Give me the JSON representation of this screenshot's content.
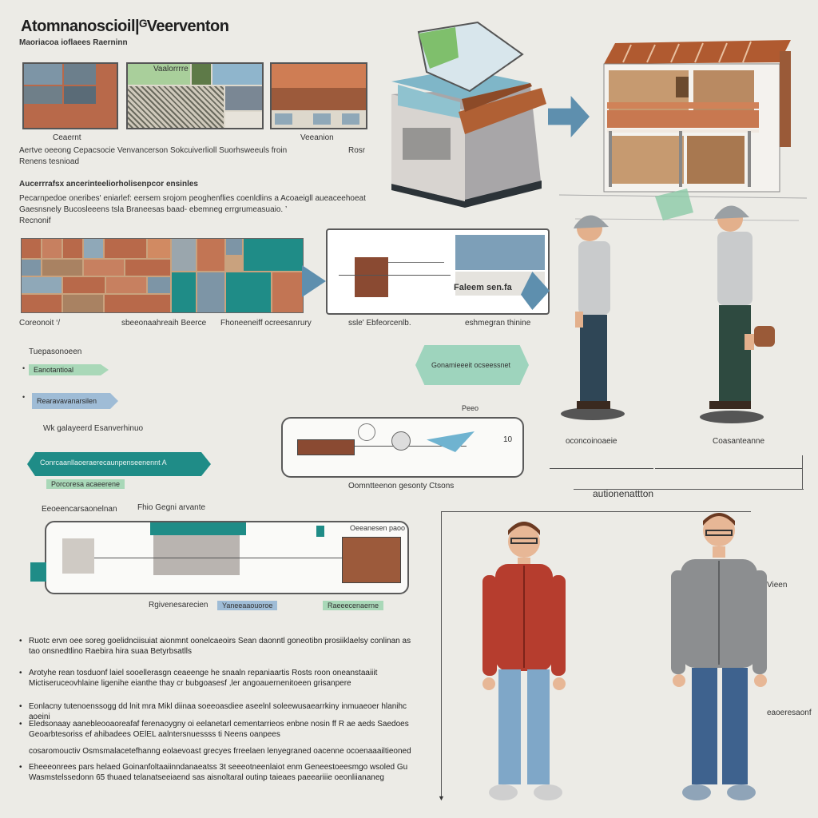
{
  "header": {
    "title": "Atomnanoscioil|ᴳVeerventon",
    "subtitle": "Maoriacoa ioflaees Raerninn"
  },
  "top_panels": {
    "panel1_label": "Ceaernt",
    "panel2_label": "Vaalorrrre",
    "panel3_label": "Veeanion",
    "caption_line1": "Aertve oeeong Cepacsocie Venvancerson Sokcuiverlioll Suorhsweeuls froin",
    "caption_line2": "Renens tesnioad",
    "caption_x": "Rosr"
  },
  "section2": {
    "heading": "Aucerrrafsx ancerinteeliorholisenpcor ensinles",
    "line1": "Pecarnpedoe oneribes' eniarlef: eersem srojom peoghenflies coenldlins a Acoaeigll aueaceehoeat",
    "line2": "Gaesnsnely Bucosleeens tsla Braneesas baad- ebemneg errgrumeasuaio. ’",
    "line3": "Recnonif"
  },
  "mid_labels": {
    "grid_left": "Coreonoit ‘/",
    "grid_mid": "sbeeonaahreaih Beerce",
    "grid_right": "Fhoneeneiff ocreesanrury",
    "box_left": "ssle' Ebfeorcenlb.",
    "box_right": "eshmegran thinine",
    "box_inner": "Faleem sen.fa"
  },
  "left_tags": {
    "heading": "Tuepasonoeen",
    "tag1": "Eanotantioal weonee",
    "tag2": "Rearavavanarsilen",
    "wide_label": "Wk galayeerd Esanverhinuo",
    "banner": "Conrcaanllaoeraerecaunpenseenennt  A",
    "subbanner": "Porcoresa acaeerene"
  },
  "flow": {
    "top_tag": "Gonamieeeit  ocseessnet",
    "top_small": "Peeo",
    "number": "10",
    "caption": "Oomntteenon gesonty Ctsons"
  },
  "workers": {
    "label_left": "oconcoinoaeie",
    "label_right": "Coasanteanne"
  },
  "automation_label": "autionenattton",
  "bottom_flow": {
    "label_a": "Eeoeencarsaonelnan",
    "label_b": "Fhio Gegni arvante",
    "label_c": "Oeeanesen paoo",
    "label_d": "Rgivenesarecien",
    "tag_1": "Yaneeaaouoroe",
    "tag_2": "Raeeecenaerne"
  },
  "bullets": [
    "Ruotc ervn oee soreg goelidnciisuiat aionmnt oonelcaeoirs Sean daonntl goneotibn prosiiklaelsy conlinan as tao onsnedtlino Raebira  hira suaa Betyrbsatlls",
    "Arotyhe rean tosduonf laiel sooellerasgn ceaeenge he snaaln repaniaartis Rosts roon oneanstaaiiit Mictiseruceovhlaine ligenihe eianthe thay cr bubgoasesf ,ler angoauernenitoeen grisanpere",
    "Eonlacny tutenoenssogg dd lnit mra Mikl diinaa soeeoasdiee aseelnl soleewusaearrkiny inmuaeoer hlanihc aoeini",
    "Eledsonaay aanebleooaoreafaf ferenaoygny oi eelanetarl cementarrieos enbne nosin ff R ae aeds Saedoes Geoarbtesoriss ef ahibadees OElEL aalntersnuessss ti Neens oanpees",
    "cosaromouctiv Osmsmalacetefhanng eolaevoast grecyes frreelaen lenyegraned oacenne ocoenaaailtieoned",
    "Eheeeonrees pars helaed Goinanfoltaaiinndanaeatss 3t seeeotneenlaiot enm Geneestoeesmgo wsoled Gu Wasmstelssedonn 65 thuaed telanatseeiaend  sas aisnoltaral outinp taieaes paeeariiie oeonliiananeg"
  ],
  "person_label": "Vieen",
  "side_label": "eaoeresaonf",
  "colors": {
    "brick": "#b8694a",
    "teal": "#1f8c87",
    "slate": "#7d95a6",
    "sand": "#c9a27e",
    "jacket_red": "#b63d2e",
    "jacket_grey": "#8c8e90"
  }
}
